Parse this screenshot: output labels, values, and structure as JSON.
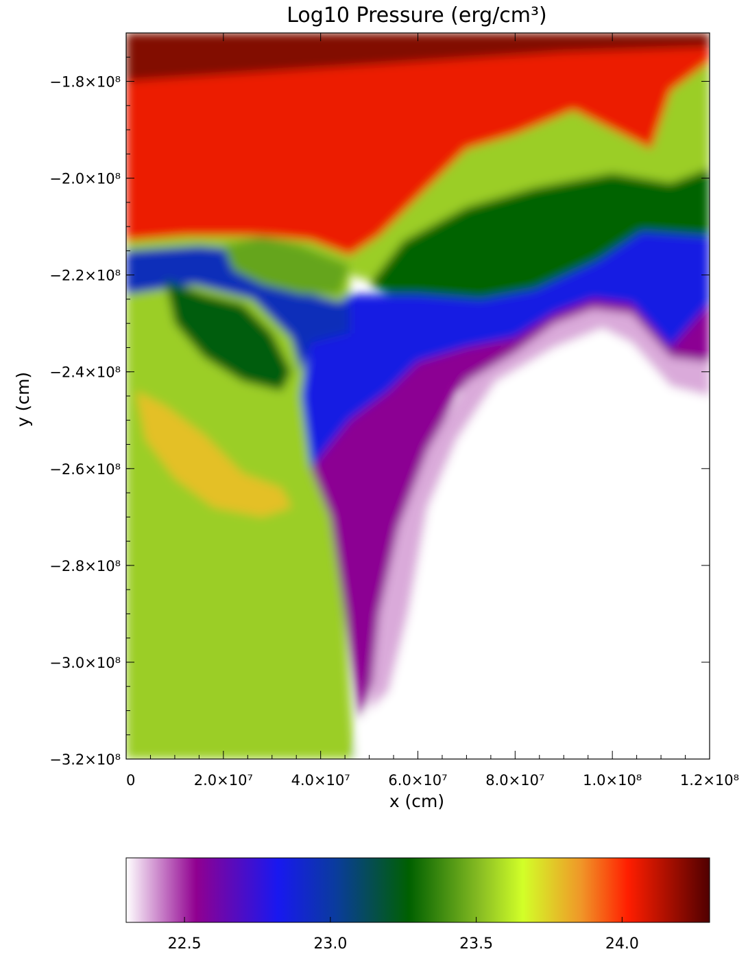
{
  "chart_data": {
    "type": "heatmap",
    "title": "Log10 Pressure (erg/cm³)",
    "xlabel": "x (cm)",
    "ylabel": "y (cm)",
    "xlim": [
      0,
      120000000
    ],
    "ylim": [
      -320000000,
      -170000000
    ],
    "x_ticks": [
      {
        "value": 0,
        "label": "0"
      },
      {
        "value": 20000000,
        "label": "2.0×10⁷"
      },
      {
        "value": 40000000,
        "label": "4.0×10⁷"
      },
      {
        "value": 60000000,
        "label": "6.0×10⁷"
      },
      {
        "value": 80000000,
        "label": "8.0×10⁷"
      },
      {
        "value": 100000000,
        "label": "1.0×10⁸"
      },
      {
        "value": 120000000,
        "label": "1.2×10⁸"
      }
    ],
    "y_ticks": [
      {
        "value": -180000000,
        "label": "−1.8×10⁸"
      },
      {
        "value": -200000000,
        "label": "−2.0×10⁸"
      },
      {
        "value": -220000000,
        "label": "−2.2×10⁸"
      },
      {
        "value": -240000000,
        "label": "−2.4×10⁸"
      },
      {
        "value": -260000000,
        "label": "−2.6×10⁸"
      },
      {
        "value": -280000000,
        "label": "−2.8×10⁸"
      },
      {
        "value": -300000000,
        "label": "−3.0×10⁸"
      },
      {
        "value": -320000000,
        "label": "−3.2×10⁸"
      }
    ],
    "colorbar": {
      "range": [
        22.3,
        24.3
      ],
      "ticks": [
        {
          "value": 22.5,
          "label": "22.5"
        },
        {
          "value": 23.0,
          "label": "23.0"
        },
        {
          "value": 23.5,
          "label": "23.5"
        },
        {
          "value": 24.0,
          "label": "24.0"
        }
      ],
      "stops": [
        {
          "value": 22.3,
          "color": "#ffffff"
        },
        {
          "value": 22.54,
          "color": "#900090"
        },
        {
          "value": 22.82,
          "color": "#1818f0"
        },
        {
          "value": 23.02,
          "color": "#0a3c9c"
        },
        {
          "value": 23.27,
          "color": "#006000"
        },
        {
          "value": 23.52,
          "color": "#8cc024"
        },
        {
          "value": 23.66,
          "color": "#d2ff28"
        },
        {
          "value": 23.86,
          "color": "#f09628"
        },
        {
          "value": 24.02,
          "color": "#ff1e00"
        },
        {
          "value": 24.3,
          "color": "#500000"
        }
      ]
    },
    "regions": [
      {
        "name": "upper high-pressure region",
        "value": 24.05,
        "poly": [
          [
            0,
            -170000000
          ],
          [
            120000000,
            -170000000
          ],
          [
            120000000,
            -176000000
          ],
          [
            112000000,
            -182000000
          ],
          [
            108000000,
            -194000000
          ],
          [
            100000000,
            -190000000
          ],
          [
            92000000,
            -186000000
          ],
          [
            80000000,
            -191000000
          ],
          [
            70000000,
            -194000000
          ],
          [
            60000000,
            -204000000
          ],
          [
            52000000,
            -212000000
          ],
          [
            46000000,
            -216000000
          ],
          [
            38000000,
            -213000000
          ],
          [
            28000000,
            -212000000
          ],
          [
            12000000,
            -212000000
          ],
          [
            0,
            -213000000
          ]
        ]
      },
      {
        "name": "dark top band",
        "value": 24.22,
        "poly": [
          [
            0,
            -170000000
          ],
          [
            120000000,
            -170000000
          ],
          [
            120000000,
            -173000000
          ],
          [
            90000000,
            -174000000
          ],
          [
            60000000,
            -176000000
          ],
          [
            30000000,
            -178000000
          ],
          [
            0,
            -180000000
          ]
        ]
      },
      {
        "name": "transition band",
        "value": 23.55,
        "poly": [
          [
            120000000,
            -176000000
          ],
          [
            120000000,
            -206000000
          ],
          [
            106000000,
            -211000000
          ],
          [
            97000000,
            -217000000
          ],
          [
            84000000,
            -223000000
          ],
          [
            73000000,
            -225000000
          ],
          [
            60000000,
            -224000000
          ],
          [
            46000000,
            -220000000
          ],
          [
            46000000,
            -216000000
          ],
          [
            52000000,
            -212000000
          ],
          [
            60000000,
            -204000000
          ],
          [
            70000000,
            -194000000
          ],
          [
            80000000,
            -191000000
          ],
          [
            92000000,
            -186000000
          ],
          [
            100000000,
            -190000000
          ],
          [
            108000000,
            -194000000
          ],
          [
            112000000,
            -182000000
          ]
        ]
      },
      {
        "name": "green wake band",
        "value": 23.28,
        "poly": [
          [
            120000000,
            -198000000
          ],
          [
            120000000,
            -216000000
          ],
          [
            106000000,
            -214000000
          ],
          [
            98000000,
            -221000000
          ],
          [
            84000000,
            -226000000
          ],
          [
            72000000,
            -228000000
          ],
          [
            60000000,
            -227000000
          ],
          [
            50000000,
            -222000000
          ],
          [
            57000000,
            -213000000
          ],
          [
            70000000,
            -206000000
          ],
          [
            84000000,
            -202000000
          ],
          [
            100000000,
            -199000000
          ],
          [
            112000000,
            -201000000
          ]
        ]
      },
      {
        "name": "blue low band",
        "value": 22.85,
        "poly": [
          [
            120000000,
            -212000000
          ],
          [
            120000000,
            -233000000
          ],
          [
            112000000,
            -235000000
          ],
          [
            104000000,
            -226000000
          ],
          [
            96000000,
            -225000000
          ],
          [
            88000000,
            -228000000
          ],
          [
            80000000,
            -233000000
          ],
          [
            70000000,
            -235000000
          ],
          [
            60000000,
            -238000000
          ],
          [
            54000000,
            -244000000
          ],
          [
            46000000,
            -250000000
          ],
          [
            38000000,
            -260000000
          ],
          [
            36000000,
            -245000000
          ],
          [
            38000000,
            -230000000
          ],
          [
            46000000,
            -224000000
          ],
          [
            60000000,
            -224000000
          ],
          [
            73000000,
            -225000000
          ],
          [
            84000000,
            -223000000
          ],
          [
            97000000,
            -217000000
          ],
          [
            106000000,
            -211000000
          ]
        ]
      },
      {
        "name": "purple band",
        "value": 22.55,
        "poly": [
          [
            120000000,
            -226000000
          ],
          [
            120000000,
            -244000000
          ],
          [
            112000000,
            -240000000
          ],
          [
            104000000,
            -230000000
          ],
          [
            96000000,
            -228000000
          ],
          [
            88000000,
            -232000000
          ],
          [
            78000000,
            -238000000
          ],
          [
            68000000,
            -244000000
          ],
          [
            62000000,
            -258000000
          ],
          [
            56000000,
            -275000000
          ],
          [
            52000000,
            -300000000
          ],
          [
            48000000,
            -312000000
          ],
          [
            45000000,
            -290000000
          ],
          [
            42000000,
            -270000000
          ],
          [
            38000000,
            -260000000
          ],
          [
            46000000,
            -250000000
          ],
          [
            54000000,
            -244000000
          ],
          [
            60000000,
            -238000000
          ],
          [
            70000000,
            -235000000
          ],
          [
            80000000,
            -233000000
          ],
          [
            88000000,
            -228000000
          ],
          [
            96000000,
            -225000000
          ],
          [
            104000000,
            -226000000
          ],
          [
            112000000,
            -235000000
          ]
        ]
      },
      {
        "name": "pale violet fringe",
        "value": 22.38,
        "poly": [
          [
            120000000,
            -238000000
          ],
          [
            120000000,
            -245000000
          ],
          [
            112000000,
            -243000000
          ],
          [
            104000000,
            -234000000
          ],
          [
            98000000,
            -231000000
          ],
          [
            88000000,
            -235000000
          ],
          [
            76000000,
            -242000000
          ],
          [
            68000000,
            -254000000
          ],
          [
            62000000,
            -268000000
          ],
          [
            58000000,
            -290000000
          ],
          [
            54000000,
            -306000000
          ],
          [
            50000000,
            -310000000
          ],
          [
            52000000,
            -290000000
          ],
          [
            56000000,
            -272000000
          ],
          [
            62000000,
            -256000000
          ],
          [
            70000000,
            -242000000
          ],
          [
            80000000,
            -236000000
          ],
          [
            88000000,
            -230000000
          ],
          [
            96000000,
            -227000000
          ],
          [
            104000000,
            -228000000
          ],
          [
            112000000,
            -237000000
          ]
        ]
      },
      {
        "name": "low-pressure cavity",
        "value": 22.3,
        "poly": [
          [
            120000000,
            -245000000
          ],
          [
            120000000,
            -320000000
          ],
          [
            47000000,
            -320000000
          ],
          [
            50000000,
            -310000000
          ],
          [
            54000000,
            -306000000
          ],
          [
            58000000,
            -290000000
          ],
          [
            62000000,
            -268000000
          ],
          [
            68000000,
            -254000000
          ],
          [
            76000000,
            -242000000
          ],
          [
            88000000,
            -235000000
          ],
          [
            98000000,
            -231000000
          ],
          [
            104000000,
            -234000000
          ],
          [
            112000000,
            -243000000
          ]
        ]
      },
      {
        "name": "left green region",
        "value": 23.55,
        "poly": [
          [
            0,
            -213000000
          ],
          [
            12000000,
            -212000000
          ],
          [
            28000000,
            -212000000
          ],
          [
            38000000,
            -213000000
          ],
          [
            46000000,
            -216000000
          ],
          [
            46000000,
            -224000000
          ],
          [
            38000000,
            -230000000
          ],
          [
            36000000,
            -245000000
          ],
          [
            38000000,
            -260000000
          ],
          [
            42000000,
            -270000000
          ],
          [
            45000000,
            -290000000
          ],
          [
            47000000,
            -320000000
          ],
          [
            0,
            -320000000
          ]
        ]
      },
      {
        "name": "left inner blue band",
        "value": 22.95,
        "poly": [
          [
            0,
            -215000000
          ],
          [
            15000000,
            -214000000
          ],
          [
            26000000,
            -215000000
          ],
          [
            30000000,
            -218000000
          ],
          [
            38000000,
            -224000000
          ],
          [
            46000000,
            -226000000
          ],
          [
            46000000,
            -232000000
          ],
          [
            38000000,
            -234000000
          ],
          [
            36000000,
            -240000000
          ],
          [
            34000000,
            -233000000
          ],
          [
            26000000,
            -225000000
          ],
          [
            14000000,
            -222000000
          ],
          [
            0,
            -224000000
          ]
        ]
      },
      {
        "name": "central dark green cluster",
        "value": 23.25,
        "poly": [
          [
            8000000,
            -221000000
          ],
          [
            16000000,
            -224000000
          ],
          [
            24000000,
            -226000000
          ],
          [
            30000000,
            -232000000
          ],
          [
            34000000,
            -240000000
          ],
          [
            32000000,
            -244000000
          ],
          [
            24000000,
            -242000000
          ],
          [
            16000000,
            -237000000
          ],
          [
            10000000,
            -230000000
          ]
        ]
      },
      {
        "name": "orange lobe",
        "value": 23.78,
        "poly": [
          [
            2000000,
            -244000000
          ],
          [
            8000000,
            -247000000
          ],
          [
            16000000,
            -253000000
          ],
          [
            24000000,
            -261000000
          ],
          [
            32000000,
            -264000000
          ],
          [
            34000000,
            -268000000
          ],
          [
            28000000,
            -270000000
          ],
          [
            18000000,
            -268000000
          ],
          [
            10000000,
            -262000000
          ],
          [
            4000000,
            -254000000
          ]
        ]
      },
      {
        "name": "green bubble upper",
        "value": 23.45,
        "poly": [
          [
            20000000,
            -214000000
          ],
          [
            28000000,
            -212000000
          ],
          [
            36000000,
            -214000000
          ],
          [
            46000000,
            -218000000
          ],
          [
            44000000,
            -224000000
          ],
          [
            36000000,
            -224000000
          ],
          [
            28000000,
            -222000000
          ],
          [
            22000000,
            -219000000
          ]
        ]
      }
    ]
  }
}
